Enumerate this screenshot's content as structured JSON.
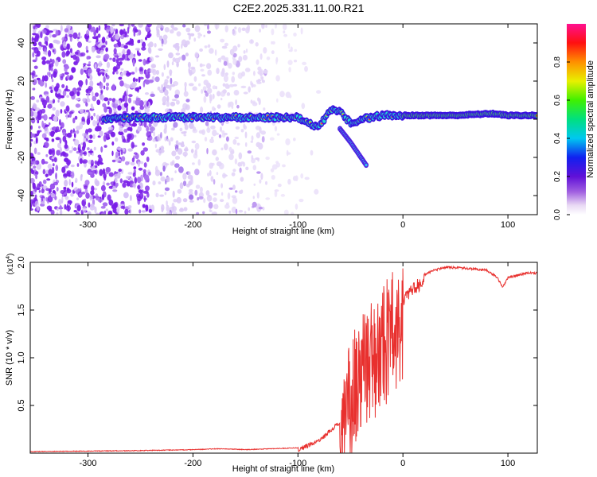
{
  "title": "C2E2.2025.331.11.00.R21",
  "chart_data": [
    {
      "type": "heatmap",
      "name": "spectrogram",
      "xlabel": "Height of straight line (km)",
      "ylabel": "Frequency (Hz)",
      "xlim": [
        -355,
        128
      ],
      "ylim": [
        -50,
        50
      ],
      "xticks": [
        -300,
        -200,
        -100,
        0,
        100
      ],
      "yticks": [
        -40,
        -20,
        0,
        20,
        40
      ],
      "tick_labels_x": [
        "-300",
        "-200",
        "-100",
        "0",
        "100"
      ],
      "tick_labels_y": [
        "-40",
        "-20",
        "0",
        "20",
        "40"
      ],
      "ridge": {
        "description_points_x": [
          -285,
          -250,
          -200,
          -150,
          -120,
          -100,
          -90,
          -80,
          -75,
          -70,
          -60,
          -50,
          -40,
          -20,
          0,
          50,
          85,
          100,
          128
        ],
        "description_points_y": [
          0,
          1,
          1,
          1,
          1,
          1,
          -2,
          -4,
          0,
          5,
          4,
          -2,
          0,
          2,
          2,
          2,
          3,
          2,
          2
        ]
      },
      "branch": {
        "x": [
          -60,
          -50,
          -40,
          -35
        ],
        "y": [
          -5,
          -12,
          -20,
          -24
        ]
      },
      "colorbar": {
        "label": "Normalized spectral amplitude",
        "range": [
          0.0,
          1.0
        ],
        "ticks": [
          "0.0",
          "0.2",
          "0.4",
          "0.6",
          "0.8"
        ],
        "tick_values": [
          0.0,
          0.2,
          0.4,
          0.6,
          0.8
        ]
      }
    },
    {
      "type": "line",
      "name": "snr",
      "xlabel": "Height of straight line (km)",
      "ylabel": "SNR (10 * v/v)",
      "scale_label": "(x10",
      "scale_exponent": "4",
      "xlim": [
        -355,
        128
      ],
      "ylim": [
        0,
        2.0
      ],
      "xticks": [
        -300,
        -200,
        -100,
        0,
        100
      ],
      "yticks": [
        0.5,
        1.0,
        1.5,
        2.0
      ],
      "tick_labels_x": [
        "-300",
        "-200",
        "-100",
        "0",
        "100"
      ],
      "tick_labels_y": [
        "0.5",
        "1.0",
        "1.5",
        "2.0"
      ],
      "color": "#e8302e",
      "series": [
        {
          "name": "SNR",
          "envelope_x": [
            -355,
            -250,
            -200,
            -175,
            -150,
            -100,
            -80,
            -60,
            -50,
            -45,
            -40,
            -30,
            -20,
            -10,
            0,
            10,
            20,
            30,
            40,
            60,
            80,
            90,
            95,
            100,
            110,
            120,
            128
          ],
          "envelope_y": [
            0.02,
            0.03,
            0.04,
            0.05,
            0.04,
            0.06,
            0.15,
            0.35,
            0.8,
            1.0,
            1.1,
            1.2,
            1.35,
            1.5,
            1.65,
            1.8,
            1.88,
            1.93,
            1.96,
            1.95,
            1.93,
            1.85,
            1.75,
            1.85,
            1.88,
            1.9,
            1.9
          ]
        }
      ]
    }
  ]
}
